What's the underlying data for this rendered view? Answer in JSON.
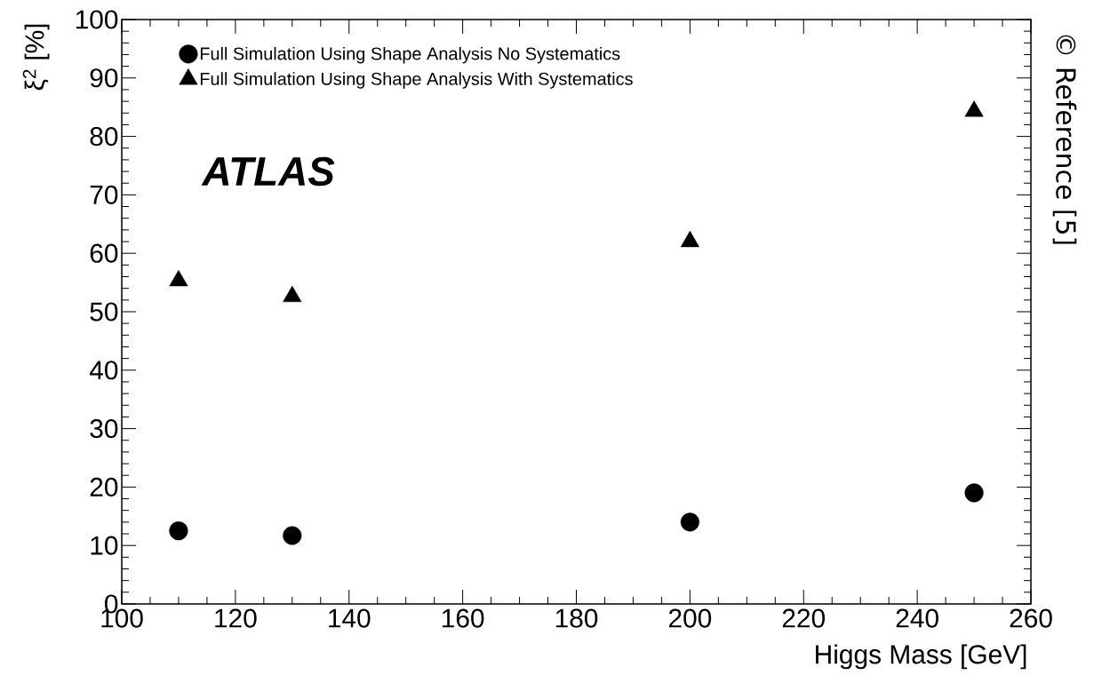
{
  "chart_data": {
    "type": "scatter",
    "xlabel": "Higgs Mass [GeV]",
    "ylabel": "ξ$^{2}$ [%]",
    "x": [
      110,
      130,
      200,
      250
    ],
    "series": [
      {
        "name": "Full Simulation Using Shape Analysis No Systematics",
        "color": "#000000",
        "marker": "circle",
        "values": [
          12.5,
          11.7,
          14.0,
          19.0
        ]
      },
      {
        "name": "Full Simulation Using Shape Analysis With Systematics",
        "color": "#000000",
        "marker": "triangle",
        "values": [
          55.3,
          52.6,
          62.0,
          84.3
        ]
      }
    ],
    "xlim": [
      100,
      260
    ],
    "ylim": [
      0,
      100
    ],
    "xticks": [
      100,
      120,
      140,
      160,
      180,
      200,
      220,
      240,
      260
    ],
    "yticks": [
      0,
      10,
      20,
      30,
      40,
      50,
      60,
      70,
      80,
      90,
      100
    ],
    "legend": "top left",
    "grid": false,
    "annotations": [
      "ATLAS",
      "© Reference [5]"
    ]
  }
}
